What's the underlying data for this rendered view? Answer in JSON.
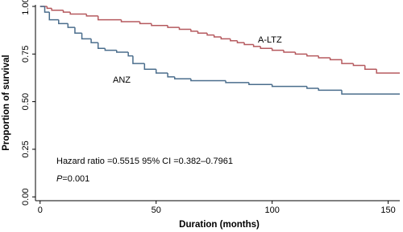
{
  "chart_data": {
    "type": "step",
    "y_label": "Proportion of survival",
    "x_label": "Duration (months)",
    "xlim": [
      -2,
      155
    ],
    "xticks": [
      0,
      50,
      100,
      150
    ],
    "ylim": [
      -0.02,
      1.0
    ],
    "yticks": [
      {
        "value": 0,
        "label": "0.00"
      },
      0.25,
      {
        "value": 0.5,
        "label": "0.50"
      },
      0.75,
      {
        "value": 1,
        "label": "1.00"
      }
    ],
    "grid": false,
    "series": [
      {
        "name": "A-LTZ",
        "color": "#b5595e",
        "x": [
          0,
          3,
          5,
          10,
          13,
          20,
          25,
          35,
          43,
          48,
          55,
          60,
          65,
          68,
          72,
          75,
          78,
          82,
          85,
          88,
          92,
          95,
          100,
          105,
          110,
          115,
          120,
          125,
          130,
          135,
          140,
          145,
          155
        ],
        "values": [
          1.0,
          0.99,
          0.98,
          0.97,
          0.96,
          0.95,
          0.93,
          0.92,
          0.91,
          0.9,
          0.89,
          0.88,
          0.87,
          0.86,
          0.85,
          0.84,
          0.83,
          0.82,
          0.81,
          0.8,
          0.79,
          0.78,
          0.77,
          0.76,
          0.75,
          0.74,
          0.73,
          0.72,
          0.7,
          0.69,
          0.67,
          0.65,
          0.65
        ]
      },
      {
        "name": "ANZ",
        "color": "#4a6d8c",
        "x": [
          0,
          2,
          4,
          8,
          12,
          15,
          18,
          22,
          25,
          28,
          33,
          38,
          40,
          45,
          50,
          55,
          58,
          65,
          80,
          90,
          100,
          115,
          120,
          130,
          155
        ],
        "values": [
          1.0,
          0.97,
          0.93,
          0.91,
          0.89,
          0.86,
          0.83,
          0.81,
          0.78,
          0.77,
          0.76,
          0.74,
          0.7,
          0.67,
          0.65,
          0.63,
          0.62,
          0.61,
          0.6,
          0.59,
          0.58,
          0.57,
          0.56,
          0.54,
          0.54
        ]
      }
    ],
    "annotations": {
      "hazard": "Hazard ratio =0.5515  95% CI =0.382–0.7961",
      "p_symbol": "P",
      "p_value": "=0.001"
    }
  }
}
